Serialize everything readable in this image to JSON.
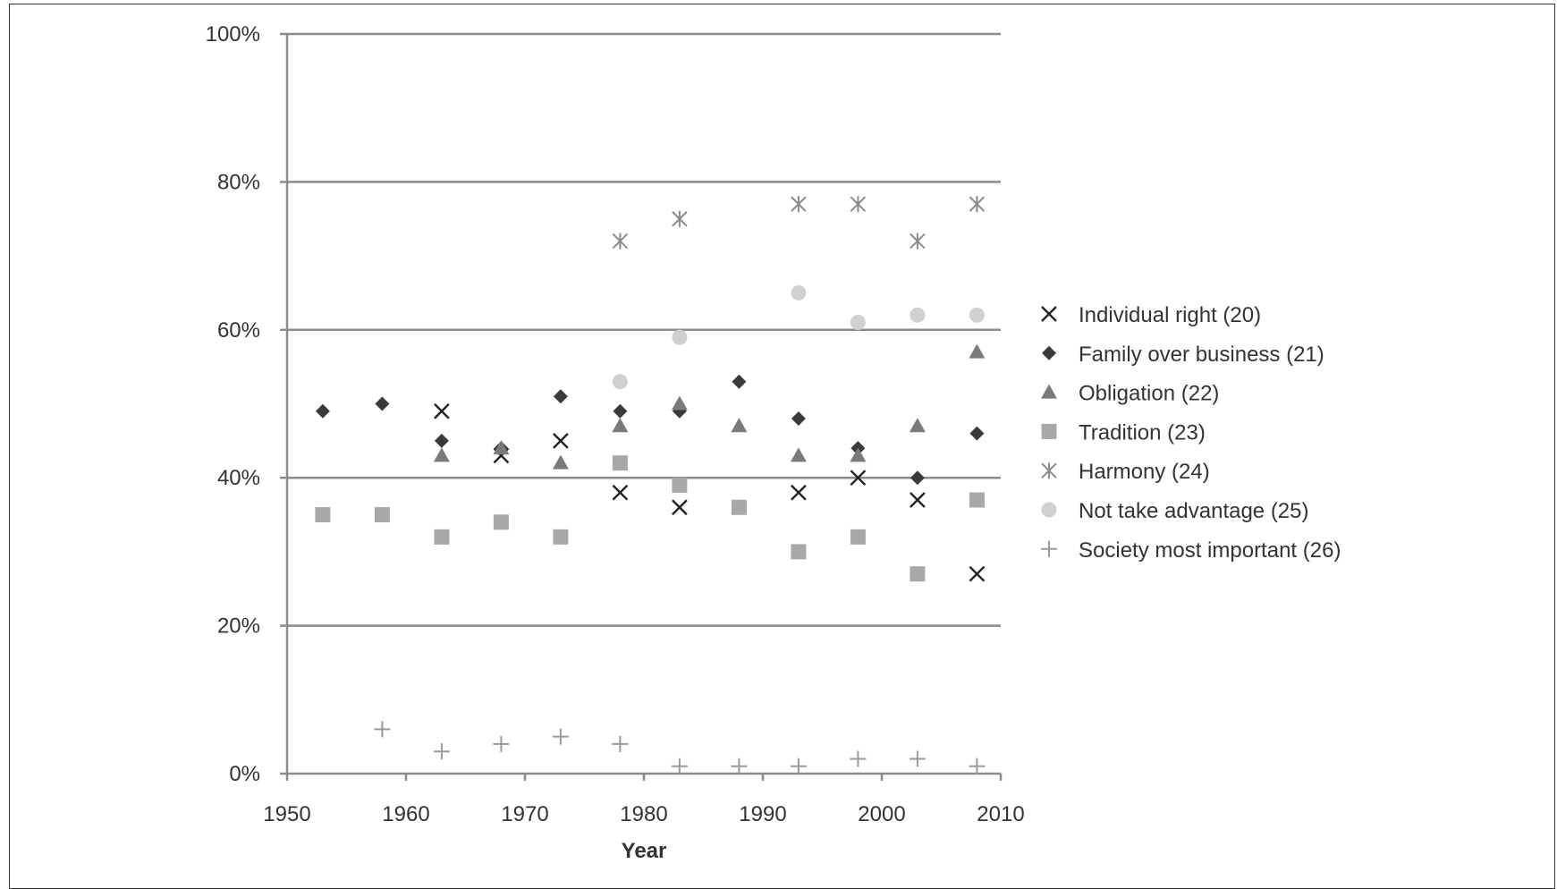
{
  "chart_data": {
    "type": "scatter",
    "title": "",
    "xlabel": "Year",
    "ylabel": "",
    "xlim": [
      1950,
      2010
    ],
    "ylim": [
      0,
      100
    ],
    "x_ticks": [
      "1950",
      "1960",
      "1970",
      "1980",
      "1990",
      "2000",
      "2010"
    ],
    "y_ticks": [
      "0%",
      "20%",
      "40%",
      "60%",
      "80%",
      "100%"
    ],
    "grid": "horizontal",
    "legend_position": "right",
    "series": [
      {
        "name": "Individual right (20)",
        "marker": "x-cross",
        "color": "#222222",
        "points": [
          [
            1963,
            49
          ],
          [
            1968,
            43
          ],
          [
            1973,
            45
          ],
          [
            1978,
            38
          ],
          [
            1983,
            36
          ],
          [
            1993,
            38
          ],
          [
            1998,
            40
          ],
          [
            2003,
            37
          ],
          [
            2008,
            27
          ]
        ]
      },
      {
        "name": "Family over business (21)",
        "marker": "diamond",
        "color": "#3a3a3a",
        "points": [
          [
            1953,
            49
          ],
          [
            1958,
            50
          ],
          [
            1963,
            45
          ],
          [
            1968,
            44
          ],
          [
            1973,
            51
          ],
          [
            1978,
            49
          ],
          [
            1983,
            49
          ],
          [
            1988,
            53
          ],
          [
            1993,
            48
          ],
          [
            1998,
            44
          ],
          [
            2003,
            40
          ],
          [
            2008,
            46
          ]
        ]
      },
      {
        "name": "Obligation (22)",
        "marker": "triangle",
        "color": "#7a7a7a",
        "points": [
          [
            1963,
            43
          ],
          [
            1968,
            44
          ],
          [
            1973,
            42
          ],
          [
            1978,
            47
          ],
          [
            1983,
            50
          ],
          [
            1988,
            47
          ],
          [
            1993,
            43
          ],
          [
            1998,
            43
          ],
          [
            2003,
            47
          ],
          [
            2008,
            57
          ]
        ]
      },
      {
        "name": "Tradition (23)",
        "marker": "square",
        "color": "#a8a8a8",
        "points": [
          [
            1953,
            35
          ],
          [
            1958,
            35
          ],
          [
            1963,
            32
          ],
          [
            1968,
            34
          ],
          [
            1973,
            32
          ],
          [
            1978,
            42
          ],
          [
            1983,
            39
          ],
          [
            1988,
            36
          ],
          [
            1993,
            30
          ],
          [
            1998,
            32
          ],
          [
            2003,
            27
          ],
          [
            2008,
            37
          ]
        ]
      },
      {
        "name": "Harmony (24)",
        "marker": "asterisk",
        "color": "#8a8a8a",
        "points": [
          [
            1978,
            72
          ],
          [
            1983,
            75
          ],
          [
            1993,
            77
          ],
          [
            1998,
            77
          ],
          [
            2003,
            72
          ],
          [
            2008,
            77
          ]
        ]
      },
      {
        "name": "Not take advantage (25)",
        "marker": "circle",
        "color": "#d0d0d0",
        "points": [
          [
            1978,
            53
          ],
          [
            1983,
            59
          ],
          [
            1993,
            65
          ],
          [
            1998,
            61
          ],
          [
            2003,
            62
          ],
          [
            2008,
            62
          ]
        ]
      },
      {
        "name": "Society most important (26)",
        "marker": "plus",
        "color": "#9a9a9a",
        "points": [
          [
            1958,
            6
          ],
          [
            1963,
            3
          ],
          [
            1968,
            4
          ],
          [
            1973,
            5
          ],
          [
            1978,
            4
          ],
          [
            1983,
            1
          ],
          [
            1988,
            1
          ],
          [
            1993,
            1
          ],
          [
            1998,
            2
          ],
          [
            2003,
            2
          ],
          [
            2008,
            1
          ]
        ]
      }
    ]
  }
}
